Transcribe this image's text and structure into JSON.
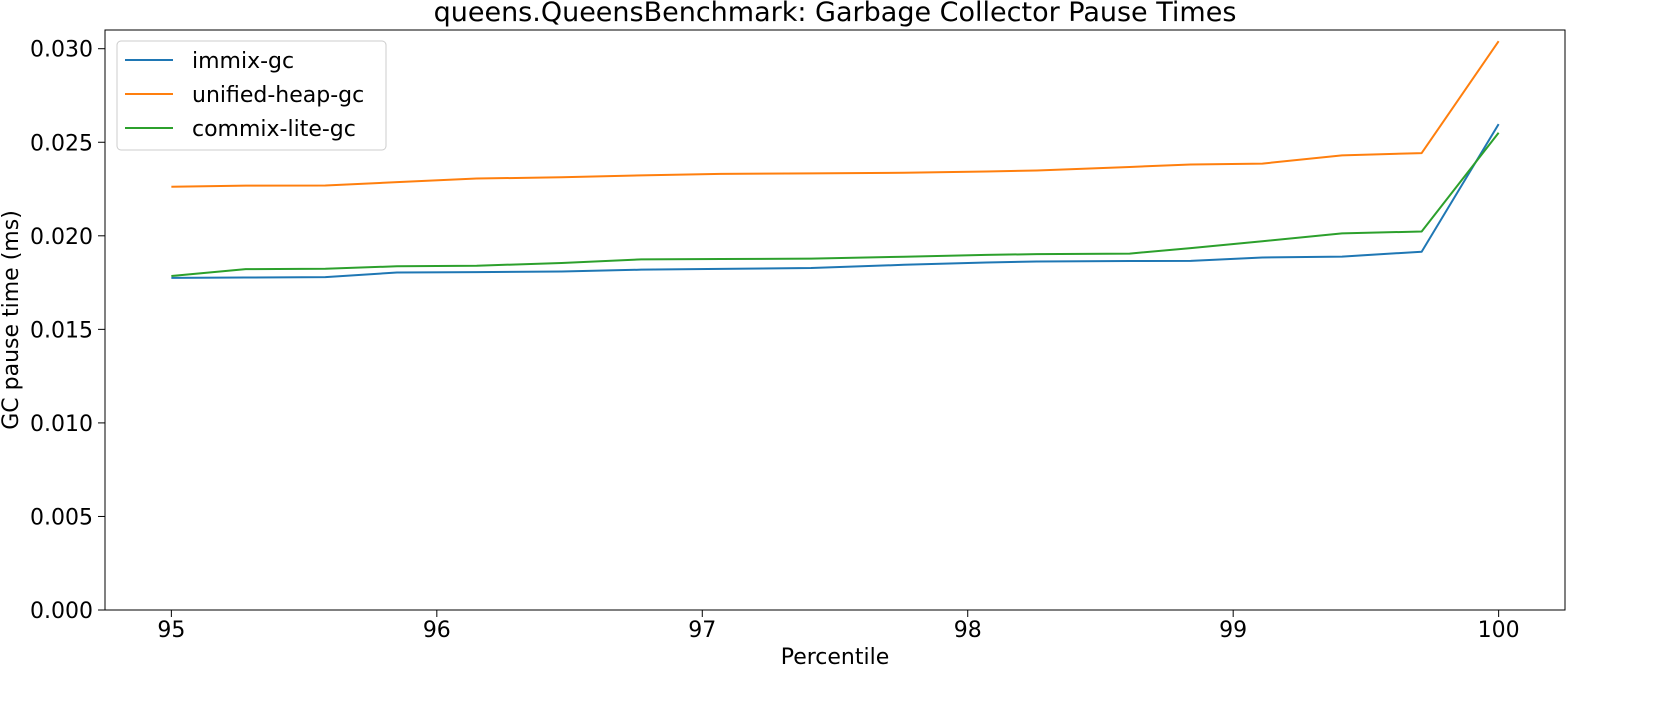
{
  "chart_data": {
    "type": "line",
    "title": "queens.QueensBenchmark: Garbage Collector Pause Times",
    "xlabel": "Percentile",
    "ylabel": "GC pause time (ms)",
    "xlim": [
      94.75,
      100.25
    ],
    "ylim": [
      0.0,
      0.031
    ],
    "xticks": [
      95,
      96,
      97,
      98,
      99,
      100
    ],
    "xtick_labels": [
      "95",
      "96",
      "97",
      "98",
      "99",
      "100"
    ],
    "yticks": [
      0.0,
      0.005,
      0.01,
      0.015,
      0.02,
      0.025,
      0.03
    ],
    "ytick_labels": [
      "0.000",
      "0.005",
      "0.010",
      "0.015",
      "0.020",
      "0.025",
      "0.030"
    ],
    "grid": false,
    "legend_position": "top-left",
    "x": [
      95.0,
      95.28,
      95.58,
      95.85,
      96.15,
      96.47,
      96.77,
      97.07,
      97.41,
      97.76,
      98.07,
      98.26,
      98.61,
      98.84,
      99.11,
      99.41,
      99.71,
      100.0
    ],
    "series": [
      {
        "name": "immix-gc",
        "color": "#1f77b4",
        "values": [
          0.01775,
          0.01777,
          0.01779,
          0.01804,
          0.01806,
          0.01809,
          0.01819,
          0.01823,
          0.01828,
          0.01845,
          0.01857,
          0.01863,
          0.01865,
          0.01866,
          0.01884,
          0.01889,
          0.01915,
          0.02597
        ]
      },
      {
        "name": "unified-heap-gc",
        "color": "#ff7f0e",
        "values": [
          0.02262,
          0.02268,
          0.02269,
          0.02287,
          0.02306,
          0.02313,
          0.02323,
          0.02331,
          0.02334,
          0.02337,
          0.02344,
          0.02349,
          0.02368,
          0.02381,
          0.02386,
          0.0243,
          0.02442,
          0.0304
        ]
      },
      {
        "name": "commix-lite-gc",
        "color": "#2ca02c",
        "values": [
          0.01785,
          0.01822,
          0.01824,
          0.01837,
          0.0184,
          0.01855,
          0.01874,
          0.01876,
          0.01878,
          0.01888,
          0.01898,
          0.01902,
          0.01905,
          0.01934,
          0.01971,
          0.02013,
          0.02023,
          0.02551
        ]
      }
    ]
  }
}
